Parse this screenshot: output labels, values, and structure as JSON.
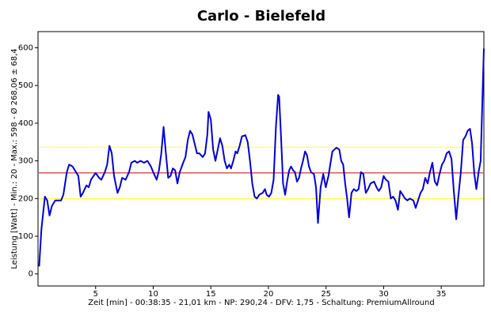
{
  "chart_data": {
    "type": "line",
    "title": "Carlo - Bielefeld",
    "xlabel": "Zeit [min] - 00:38:35 - 21,01 km - NP: 290,24 - DFV: 1,75 - Schaltung: PremiumAllround",
    "ylabel": "Leistung [Watt] - Min.: 20 - Max.: 598 - Ø 268,06 ± 68,4",
    "xlim": [
      0,
      38.7
    ],
    "ylim": [
      -32,
      643
    ],
    "xticks": [
      5,
      10,
      15,
      20,
      25,
      30,
      35
    ],
    "yticks": [
      0,
      100,
      200,
      300,
      400,
      500,
      600
    ],
    "hlines": [
      {
        "value": 336.46,
        "color": "#ffff33"
      },
      {
        "value": 199.66,
        "color": "#ffff33"
      },
      {
        "value": 268.06,
        "color": "#cc0000"
      }
    ],
    "series": [
      {
        "color": "#0000dd",
        "x": [
          0.1,
          0.3,
          0.6,
          0.8,
          1.0,
          1.2,
          1.5,
          2.0,
          2.2,
          2.5,
          2.7,
          3.0,
          3.3,
          3.5,
          3.7,
          3.9,
          4.2,
          4.4,
          4.6,
          5.0,
          5.3,
          5.5,
          5.8,
          6.0,
          6.2,
          6.4,
          6.6,
          6.9,
          7.1,
          7.3,
          7.6,
          7.9,
          8.1,
          8.4,
          8.6,
          8.9,
          9.2,
          9.5,
          9.8,
          10.0,
          10.3,
          10.5,
          10.7,
          10.9,
          11.1,
          11.3,
          11.5,
          11.7,
          11.9,
          12.1,
          12.3,
          12.6,
          12.8,
          13.0,
          13.2,
          13.4,
          13.6,
          13.8,
          14.0,
          14.3,
          14.5,
          14.7,
          14.8,
          15.0,
          15.2,
          15.4,
          15.6,
          15.8,
          16.0,
          16.2,
          16.4,
          16.6,
          16.75,
          16.95,
          17.15,
          17.3,
          17.5,
          17.7,
          18.0,
          18.2,
          18.4,
          18.6,
          18.8,
          19.0,
          19.2,
          19.5,
          19.7,
          19.85,
          20.05,
          20.25,
          20.45,
          20.65,
          20.84,
          20.93,
          21.1,
          21.27,
          21.45,
          21.62,
          21.8,
          21.96,
          22.14,
          22.3,
          22.48,
          22.66,
          22.83,
          23.0,
          23.18,
          23.35,
          23.52,
          23.7,
          23.95,
          24.13,
          24.3,
          24.53,
          24.76,
          24.98,
          25.21,
          25.55,
          25.9,
          26.15,
          26.32,
          26.49,
          26.66,
          26.83,
          27.0,
          27.21,
          27.41,
          27.62,
          27.83,
          28.03,
          28.24,
          28.45,
          28.65,
          28.86,
          29.17,
          29.38,
          29.58,
          29.79,
          30.0,
          30.2,
          30.41,
          30.62,
          30.82,
          31.03,
          31.24,
          31.44,
          31.65,
          31.86,
          32.06,
          32.27,
          32.58,
          32.78,
          32.99,
          33.2,
          33.4,
          33.61,
          33.82,
          34.02,
          34.23,
          34.44,
          34.64,
          34.85,
          35.06,
          35.26,
          35.47,
          35.68,
          35.89,
          36.09,
          36.3,
          36.5,
          36.7,
          36.9,
          37.1,
          37.3,
          37.5,
          37.68,
          37.87,
          38.05,
          38.24,
          38.42,
          38.7
        ],
        "values": [
          20,
          120,
          205,
          195,
          155,
          180,
          195,
          195,
          210,
          270,
          290,
          285,
          270,
          260,
          205,
          215,
          235,
          230,
          250,
          268,
          255,
          250,
          270,
          290,
          340,
          320,
          260,
          215,
          230,
          255,
          250,
          270,
          295,
          300,
          295,
          300,
          295,
          300,
          285,
          270,
          250,
          275,
          320,
          390,
          320,
          255,
          260,
          280,
          275,
          240,
          270,
          295,
          310,
          355,
          380,
          370,
          345,
          320,
          320,
          310,
          320,
          370,
          430,
          410,
          330,
          300,
          330,
          360,
          340,
          300,
          280,
          290,
          280,
          300,
          325,
          320,
          340,
          365,
          368,
          350,
          300,
          240,
          205,
          200,
          210,
          215,
          225,
          210,
          205,
          215,
          250,
          390,
          475,
          470,
          360,
          240,
          210,
          245,
          275,
          285,
          275,
          270,
          245,
          255,
          280,
          300,
          325,
          315,
          285,
          270,
          265,
          230,
          135,
          230,
          265,
          230,
          260,
          325,
          335,
          330,
          300,
          290,
          240,
          200,
          150,
          215,
          225,
          220,
          225,
          270,
          265,
          215,
          225,
          240,
          245,
          230,
          220,
          230,
          260,
          250,
          245,
          200,
          205,
          195,
          170,
          220,
          210,
          200,
          195,
          200,
          195,
          175,
          195,
          215,
          225,
          255,
          240,
          270,
          295,
          245,
          235,
          265,
          290,
          300,
          320,
          325,
          305,
          220,
          145,
          210,
          270,
          355,
          365,
          380,
          385,
          345,
          265,
          225,
          270,
          300,
          598
        ]
      }
    ]
  }
}
